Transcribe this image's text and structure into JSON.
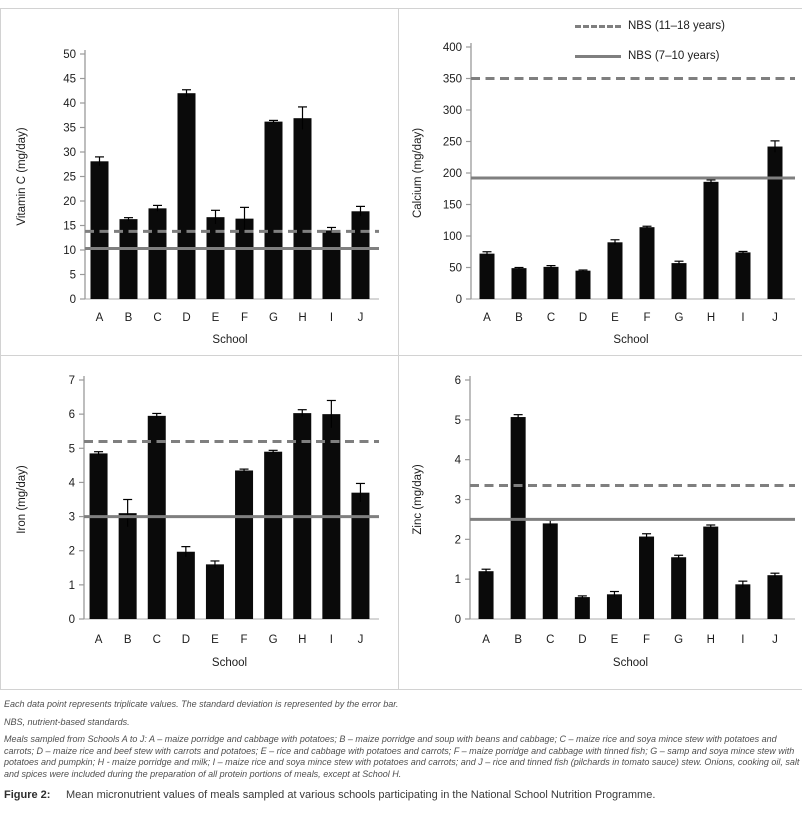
{
  "legend": {
    "dashed_label": "NBS (11–18 years)",
    "solid_label": "NBS (7–10 years)"
  },
  "colors": {
    "bar": "#0a0a0a",
    "reference_line": "#7f7f7f",
    "axis": "#9a9a9a",
    "baseline": "#bdbdbd"
  },
  "chart_data": [
    {
      "type": "bar",
      "title": "Vitamin C by school",
      "ylabel": "Vitamin C (mg/day)",
      "xlabel": "School",
      "categories": [
        "A",
        "B",
        "C",
        "D",
        "E",
        "F",
        "G",
        "H",
        "I",
        "J"
      ],
      "values": [
        28.1,
        16.3,
        18.5,
        42.0,
        16.7,
        16.4,
        36.2,
        36.9,
        14.0,
        17.9
      ],
      "errors": [
        0.9,
        0.3,
        0.6,
        0.7,
        1.4,
        2.3,
        0.25,
        2.3,
        0.6,
        1.0
      ],
      "ylim": [
        0,
        50
      ],
      "ystep": 5,
      "ref_dashed": 13.8,
      "ref_solid": 10.3,
      "grid": false,
      "legend_position": "none"
    },
    {
      "type": "bar",
      "title": "Calcium by school",
      "ylabel": "Calcium (mg/day)",
      "xlabel": "School",
      "categories": [
        "A",
        "B",
        "C",
        "D",
        "E",
        "F",
        "G",
        "H",
        "I",
        "J"
      ],
      "values": [
        72,
        49,
        51,
        45,
        90,
        114,
        57,
        186,
        74,
        242
      ],
      "errors": [
        3,
        1,
        2,
        1,
        4,
        1.5,
        3,
        3,
        1.5,
        9
      ],
      "ylim": [
        0,
        400
      ],
      "ystep": 50,
      "ref_dashed": 350,
      "ref_solid": 192,
      "grid": false,
      "legend_position": "top-right"
    },
    {
      "type": "bar",
      "title": "Iron by school",
      "ylabel": "Iron (mg/day)",
      "xlabel": "School",
      "categories": [
        "A",
        "B",
        "C",
        "D",
        "E",
        "F",
        "G",
        "H",
        "I",
        "J"
      ],
      "values": [
        4.85,
        3.1,
        5.95,
        1.97,
        1.6,
        4.35,
        4.9,
        6.03,
        6.0,
        3.7
      ],
      "errors": [
        0.05,
        0.4,
        0.07,
        0.15,
        0.1,
        0.04,
        0.04,
        0.1,
        0.4,
        0.27
      ],
      "ylim": [
        0,
        7
      ],
      "ystep": 1,
      "ref_dashed": 5.2,
      "ref_solid": 3.0,
      "grid": false,
      "legend_position": "none"
    },
    {
      "type": "bar",
      "title": "Zinc by school",
      "ylabel": "Zinc (mg/day)",
      "xlabel": "School",
      "categories": [
        "A",
        "B",
        "C",
        "D",
        "E",
        "F",
        "G",
        "H",
        "I",
        "J"
      ],
      "values": [
        1.2,
        5.07,
        2.4,
        0.55,
        0.62,
        2.07,
        1.55,
        2.32,
        0.87,
        1.1
      ],
      "errors": [
        0.05,
        0.06,
        0.08,
        0.03,
        0.07,
        0.07,
        0.05,
        0.04,
        0.08,
        0.05
      ],
      "ylim": [
        0,
        6
      ],
      "ystep": 1,
      "ref_dashed": 3.35,
      "ref_solid": 2.5,
      "grid": false,
      "legend_position": "none"
    }
  ],
  "notes": [
    "Each data point represents triplicate values. The standard deviation is represented by the error bar.",
    "NBS, nutrient-based standards.",
    "Meals sampled from Schools A to J: A – maize porridge and cabbage with potatoes; B – maize porridge and soup with beans and cabbage; C – maize rice and soya mince stew with potatoes and carrots; D – maize rice and beef stew with carrots and potatoes; E – rice and cabbage with potatoes and carrots; F – maize porridge and cabbage with tinned fish; G – samp and soya mince stew with potatoes and pumpkin; H - maize porridge and milk; I – maize rice and soya mince stew with potatoes and carrots; and J – rice and tinned fish (pilchards in tomato sauce) stew. Onions, cooking oil, salt and spices were included during the preparation of all protein portions of meals, except at School H."
  ],
  "figure_caption": {
    "label": "Figure 2:",
    "text": "Mean micronutrient values of meals sampled at various schools participating in the National School Nutrition Programme."
  }
}
